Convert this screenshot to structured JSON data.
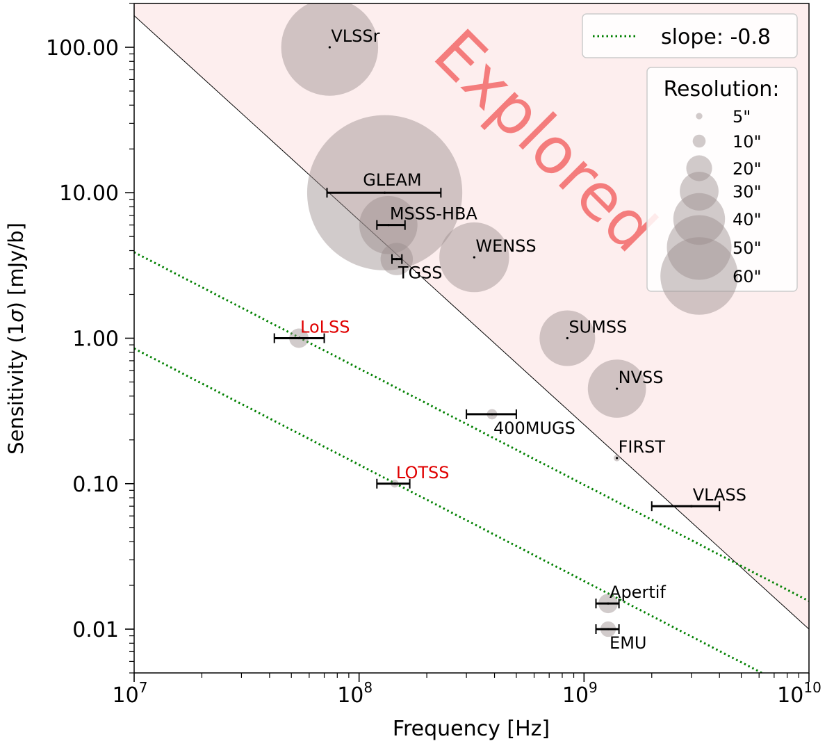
{
  "chart_data": {
    "type": "scatter",
    "xscale": "log",
    "yscale": "log",
    "xlim": [
      10000000,
      10000000000
    ],
    "ylim": [
      0.005,
      200
    ],
    "xlabel": "Frequency [Hz]",
    "ylabel_prefix": "Sensitivity (1",
    "ylabel_sigma": "σ",
    "ylabel_suffix": ") [mJy/b]",
    "xtick_values": [
      10000000,
      100000000,
      1000000000,
      10000000000
    ],
    "xtick_exponents": [
      "7",
      "8",
      "9",
      "10"
    ],
    "xtick_base": "10",
    "ytick_values": [
      0.01,
      0.1,
      1,
      10,
      100
    ],
    "ytick_labels": [
      "0.01",
      "0.10",
      "1.00",
      "10.00",
      "100.00"
    ],
    "explored_label": "Explored",
    "explored_boundary": {
      "x": [
        10000000,
        10000000000
      ],
      "y": [
        165,
        0.01
      ]
    },
    "slope_lines": [
      {
        "x": [
          10000000,
          10000000000
        ],
        "y": [
          3.9,
          0.0156
        ]
      },
      {
        "x": [
          10000000,
          10000000000
        ],
        "y": [
          0.85,
          0.0034
        ]
      }
    ],
    "legend": {
      "line_label": "slope: -0.8",
      "line_color": "#008000",
      "position": "top-right"
    },
    "size_legend": {
      "title": "Resolution:",
      "entries": [
        {
          "label": "5\"",
          "arcsec": 5
        },
        {
          "label": "10\"",
          "arcsec": 10
        },
        {
          "label": "20\"",
          "arcsec": 20
        },
        {
          "label": "30\"",
          "arcsec": 30
        },
        {
          "label": "40\"",
          "arcsec": 40
        },
        {
          "label": "50\"",
          "arcsec": 50
        },
        {
          "label": "60\"",
          "arcsec": 60
        }
      ]
    },
    "surveys": [
      {
        "name": "VLSSr",
        "freq": 74000000,
        "sens": 100,
        "res_arcsec": 75,
        "range": null,
        "label_anchor": "upper-right",
        "highlight": false
      },
      {
        "name": "GLEAM",
        "freq": 130000000,
        "sens": 10,
        "res_arcsec": 120,
        "range": [
          72000000,
          231000000
        ],
        "label_anchor": "above",
        "highlight": false
      },
      {
        "name": "MSSS-HBA",
        "freq": 135000000,
        "sens": 6,
        "res_arcsec": 45,
        "range": [
          120000000,
          160000000
        ],
        "label_anchor": "upper-right",
        "highlight": false
      },
      {
        "name": "TGSS",
        "freq": 147000000,
        "sens": 3.5,
        "res_arcsec": 25,
        "range": [
          140000000,
          155000000
        ],
        "label_anchor": "lower-right",
        "highlight": false
      },
      {
        "name": "WENSS",
        "freq": 325000000,
        "sens": 3.6,
        "res_arcsec": 54,
        "range": null,
        "label_anchor": "upper-right",
        "highlight": false
      },
      {
        "name": "LoLSS",
        "freq": 54000000,
        "sens": 1,
        "res_arcsec": 15,
        "range": [
          42000000,
          70000000
        ],
        "label_anchor": "upper-right",
        "highlight": true
      },
      {
        "name": "SUMSS",
        "freq": 843000000,
        "sens": 1,
        "res_arcsec": 43,
        "range": null,
        "label_anchor": "upper-right",
        "highlight": false
      },
      {
        "name": "NVSS",
        "freq": 1400000000,
        "sens": 0.45,
        "res_arcsec": 45,
        "range": null,
        "label_anchor": "upper-right",
        "highlight": false
      },
      {
        "name": "400MUGS",
        "freq": 390000000,
        "sens": 0.3,
        "res_arcsec": 8,
        "range": [
          300000000,
          500000000
        ],
        "label_anchor": "lower-right",
        "highlight": false
      },
      {
        "name": "FIRST",
        "freq": 1400000000,
        "sens": 0.15,
        "res_arcsec": 5,
        "range": null,
        "label_anchor": "upper-right",
        "highlight": false
      },
      {
        "name": "LOTSS",
        "freq": 144000000,
        "sens": 0.1,
        "res_arcsec": 6,
        "range": [
          120000000,
          168000000
        ],
        "label_anchor": "upper-right",
        "highlight": true
      },
      {
        "name": "VLASS",
        "freq": 3000000000,
        "sens": 0.07,
        "res_arcsec": 2.5,
        "range": [
          2000000000,
          4000000000
        ],
        "label_anchor": "upper-right",
        "highlight": false
      },
      {
        "name": "Apertif",
        "freq": 1280000000,
        "sens": 0.015,
        "res_arcsec": 15,
        "range": [
          1130000000,
          1430000000
        ],
        "label_anchor": "upper-right",
        "highlight": false
      },
      {
        "name": "EMU",
        "freq": 1280000000,
        "sens": 0.01,
        "res_arcsec": 12,
        "range": [
          1130000000,
          1430000000
        ],
        "label_anchor": "lower-right",
        "highlight": false
      }
    ],
    "colors": {
      "explored_fill": "#fdeeee",
      "explored_text": "#f47c7c",
      "bubble": "#9a8c8c",
      "highlight_label": "#e00000",
      "slope_line": "#008000"
    }
  }
}
